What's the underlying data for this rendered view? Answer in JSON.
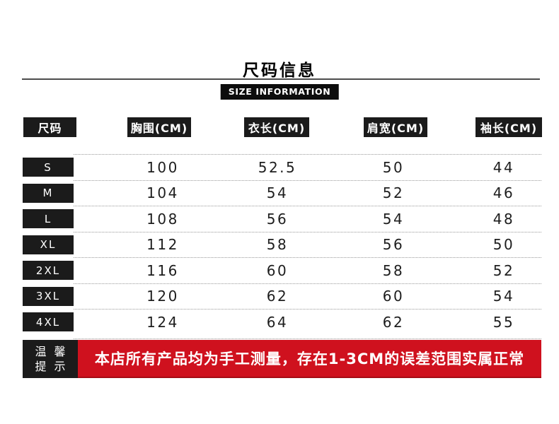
{
  "title": "尺码信息",
  "subtitle": "SIZE INFORMATION",
  "table": {
    "headers": [
      "尺码",
      "胸围(CM)",
      "衣长(CM)",
      "肩宽(CM)",
      "袖长(CM)"
    ],
    "rows": [
      {
        "size": "S",
        "values": [
          "100",
          "52.5",
          "50",
          "44"
        ]
      },
      {
        "size": "M",
        "values": [
          "104",
          "54",
          "52",
          "46"
        ]
      },
      {
        "size": "L",
        "values": [
          "108",
          "56",
          "54",
          "48"
        ]
      },
      {
        "size": "XL",
        "values": [
          "112",
          "58",
          "56",
          "50"
        ]
      },
      {
        "size": "2XL",
        "values": [
          "116",
          "60",
          "58",
          "52"
        ]
      },
      {
        "size": "3XL",
        "values": [
          "120",
          "62",
          "60",
          "54"
        ]
      },
      {
        "size": "4XL",
        "values": [
          "124",
          "64",
          "62",
          "55"
        ]
      }
    ]
  },
  "notice": {
    "label_lines": [
      "温馨",
      "提示"
    ],
    "text": "本店所有产品均为手工测量，存在1-3CM的误差范围实属正常"
  },
  "colors": {
    "accent_red": "#cf111e",
    "box_black": "#1b1b1b",
    "text_dark": "#1d1d1d"
  },
  "chart_data": {
    "type": "table",
    "title": "尺码信息",
    "subtitle": "SIZE INFORMATION",
    "columns": [
      "尺码",
      "胸围(CM)",
      "衣长(CM)",
      "肩宽(CM)",
      "袖长(CM)"
    ],
    "rows": [
      [
        "S",
        100,
        52.5,
        50,
        44
      ],
      [
        "M",
        104,
        54,
        52,
        46
      ],
      [
        "L",
        108,
        56,
        54,
        48
      ],
      [
        "XL",
        112,
        58,
        56,
        50
      ],
      [
        "2XL",
        116,
        60,
        58,
        52
      ],
      [
        "3XL",
        120,
        62,
        60,
        54
      ],
      [
        "4XL",
        124,
        64,
        62,
        55
      ]
    ],
    "note": "本店所有产品均为手工测量，存在1-3CM的误差范围实属正常"
  }
}
